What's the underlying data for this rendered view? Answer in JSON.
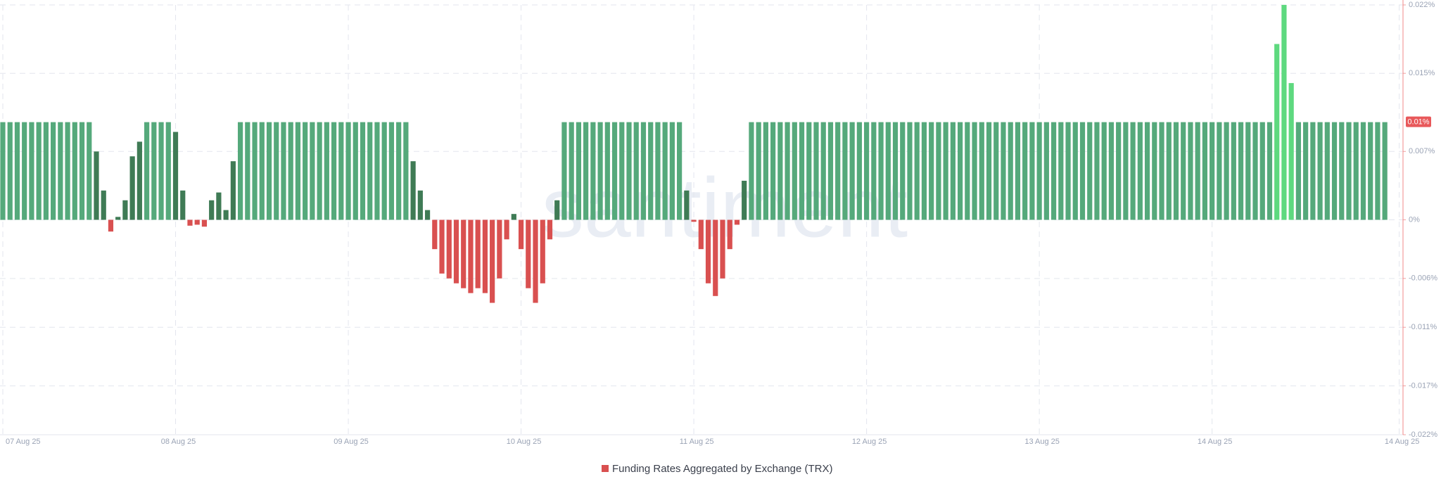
{
  "chart_data": {
    "type": "bar",
    "watermark": "santiment",
    "categories": [
      "07 Aug 25",
      null,
      null,
      null,
      null,
      null,
      null,
      null,
      null,
      null,
      null,
      null,
      null,
      null,
      null,
      null,
      null,
      null,
      null,
      null,
      null,
      null,
      null,
      null,
      "08 Aug 25",
      null,
      null,
      null,
      null,
      null,
      null,
      null,
      null,
      null,
      null,
      null,
      null,
      null,
      null,
      null,
      null,
      null,
      null,
      null,
      null,
      null,
      null,
      null,
      "09 Aug 25",
      null,
      null,
      null,
      null,
      null,
      null,
      null,
      null,
      null,
      null,
      null,
      null,
      null,
      null,
      null,
      null,
      null,
      null,
      null,
      null,
      null,
      null,
      null,
      "10 Aug 25",
      null,
      null,
      null,
      null,
      null,
      null,
      null,
      null,
      null,
      null,
      null,
      null,
      null,
      null,
      null,
      null,
      null,
      null,
      null,
      null,
      null,
      null,
      null,
      "11 Aug 25",
      null,
      null,
      null,
      null,
      null,
      null,
      null,
      null,
      null,
      null,
      null,
      null,
      null,
      null,
      null,
      null,
      null,
      null,
      null,
      null,
      null,
      null,
      null,
      "12 Aug 25",
      null,
      null,
      null,
      null,
      null,
      null,
      null,
      null,
      null,
      null,
      null,
      null,
      null,
      null,
      null,
      null,
      null,
      null,
      null,
      null,
      null,
      null,
      null,
      "13 Aug 25",
      null,
      null,
      null,
      null,
      null,
      null,
      null,
      null,
      null,
      null,
      null,
      null,
      null,
      null,
      null,
      null,
      null,
      null,
      null,
      null,
      null,
      null,
      null,
      "14 Aug 25",
      null,
      null,
      null,
      null,
      null,
      null,
      null,
      null,
      null,
      null,
      null,
      null,
      null,
      null,
      null,
      null,
      null,
      null,
      null,
      null,
      null,
      null,
      null,
      null,
      null,
      "14 Aug 25"
    ],
    "series": [
      {
        "name": "Funding Rates Aggregated by Exchange (TRX)",
        "color": "#d95050",
        "values": [
          0.01,
          0.01,
          0.01,
          0.01,
          0.01,
          0.01,
          0.01,
          0.01,
          0.01,
          0.01,
          0.01,
          0.01,
          0.01,
          0.007,
          0.003,
          -0.0012,
          0.0003,
          0.002,
          0.0065,
          0.008,
          0.01,
          0.01,
          0.01,
          0.01,
          0.009,
          0.003,
          -0.0006,
          -0.0005,
          -0.0007,
          0.002,
          0.0028,
          0.001,
          0.006,
          0.01,
          0.01,
          0.01,
          0.01,
          0.01,
          0.01,
          0.01,
          0.01,
          0.01,
          0.01,
          0.01,
          0.01,
          0.01,
          0.01,
          0.01,
          0.01,
          0.01,
          0.01,
          0.01,
          0.01,
          0.01,
          0.01,
          0.01,
          0.01,
          0.006,
          0.003,
          0.001,
          -0.003,
          -0.0055,
          -0.006,
          -0.0065,
          -0.007,
          -0.0075,
          -0.007,
          -0.0075,
          -0.0085,
          -0.006,
          -0.002,
          0.0006,
          -0.003,
          -0.007,
          -0.0085,
          -0.0065,
          -0.002,
          0.002,
          0.01,
          0.01,
          0.01,
          0.01,
          0.01,
          0.01,
          0.01,
          0.01,
          0.01,
          0.01,
          0.01,
          0.01,
          0.01,
          0.01,
          0.01,
          0.01,
          0.01,
          0.003,
          -0.0002,
          -0.003,
          -0.0065,
          -0.0078,
          -0.006,
          -0.003,
          -0.0005,
          0.004,
          0.01,
          0.01,
          0.01,
          0.01,
          0.01,
          0.01,
          0.01,
          0.01,
          0.01,
          0.01,
          0.01,
          0.01,
          0.01,
          0.01,
          0.01,
          0.01,
          0.01,
          0.01,
          0.01,
          0.01,
          0.01,
          0.01,
          0.01,
          0.01,
          0.01,
          0.01,
          0.01,
          0.01,
          0.01,
          0.01,
          0.01,
          0.01,
          0.01,
          0.01,
          0.01,
          0.01,
          0.01,
          0.01,
          0.01,
          0.01,
          0.01,
          0.01,
          0.01,
          0.01,
          0.01,
          0.01,
          0.01,
          0.01,
          0.01,
          0.01,
          0.01,
          0.01,
          0.01,
          0.01,
          0.01,
          0.01,
          0.01,
          0.01,
          0.01,
          0.01,
          0.01,
          0.01,
          0.01,
          0.01,
          0.01,
          0.01,
          0.01,
          0.01,
          0.01,
          0.01,
          0.01,
          0.01,
          0.01,
          0.018,
          0.022,
          0.014,
          0.01,
          0.01,
          0.01,
          0.01,
          0.01,
          0.01,
          0.01,
          0.01,
          0.01,
          0.01,
          0.01,
          0.01,
          0.01,
          null,
          null
        ]
      }
    ],
    "colors": {
      "high": "#5ed97f",
      "base": "#55a97b",
      "low": "#3f7b55",
      "negative": "#d95050"
    },
    "ylim": [
      -0.022,
      0.022
    ],
    "yticks": [
      {
        "value": 0.022,
        "label": "0.022%"
      },
      {
        "value": 0.015,
        "label": "0.015%"
      },
      {
        "value": 0.007,
        "label": "0.007%"
      },
      {
        "value": 0,
        "label": "0%"
      },
      {
        "value": -0.006,
        "label": "-0.006%"
      },
      {
        "value": -0.011,
        "label": "-0.011%"
      },
      {
        "value": -0.017,
        "label": "-0.017%"
      },
      {
        "value": -0.022,
        "label": "-0.022%"
      }
    ],
    "last_value_label": {
      "value": 0.01,
      "label": "0.01%"
    },
    "grid": true
  }
}
